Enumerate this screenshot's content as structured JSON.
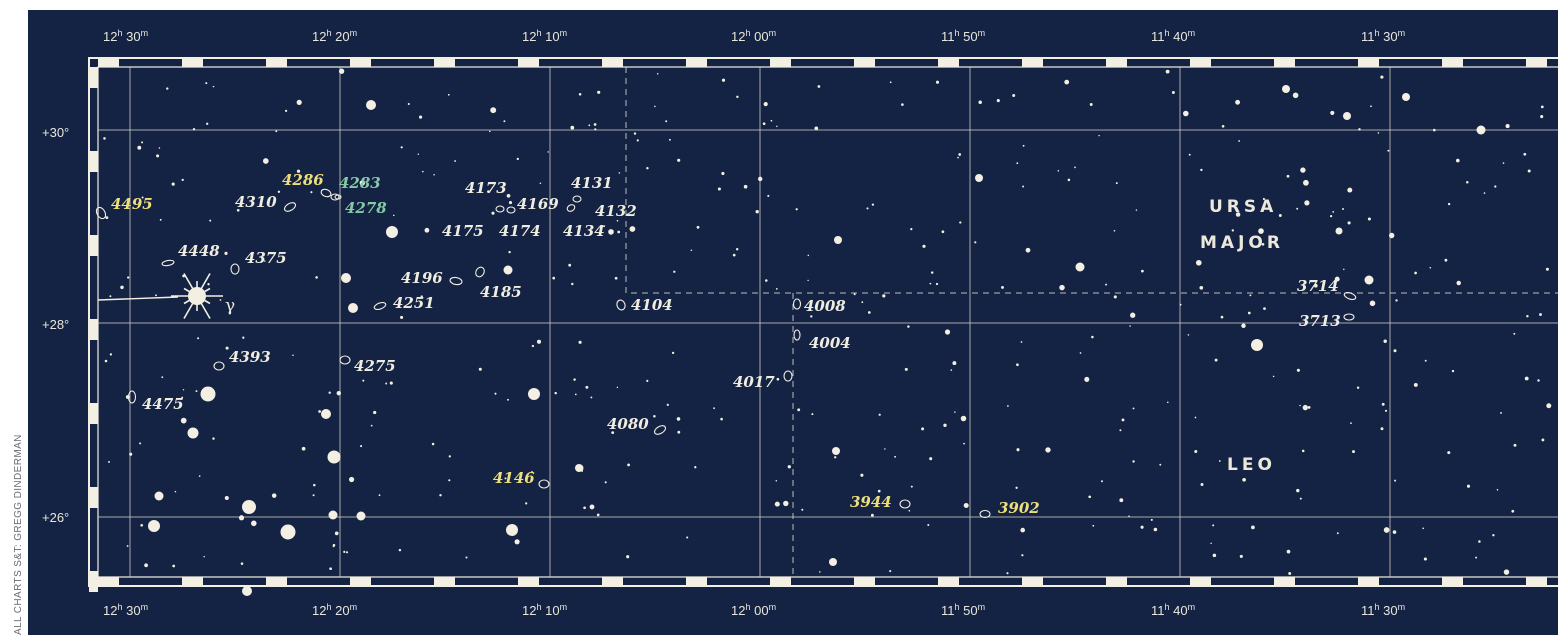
{
  "credit": "ALL CHARTS S&T: GREGG DINDERMAN",
  "colors": {
    "background": "#142343",
    "grid": "#d8d6cc",
    "star": "#f3efe2",
    "galaxy_label": "#efece0",
    "highlight_yellow": "#eedf7c",
    "highlight_green": "#86c9a4"
  },
  "ra_labels": [
    {
      "h": "12",
      "m": "30"
    },
    {
      "h": "12",
      "m": "20"
    },
    {
      "h": "12",
      "m": "10"
    },
    {
      "h": "12",
      "m": "00"
    },
    {
      "h": "11",
      "m": "50"
    },
    {
      "h": "11",
      "m": "40"
    },
    {
      "h": "11",
      "m": "30"
    }
  ],
  "dec_labels": [
    "+30°",
    "+28°",
    "+26°"
  ],
  "constellations": [
    "URSA",
    "MAJOR",
    "LEO"
  ],
  "star_label_gamma": "γ",
  "galaxies": [
    {
      "label": "4495",
      "color": "yellow"
    },
    {
      "label": "4310",
      "color": "white"
    },
    {
      "label": "4286",
      "color": "yellow"
    },
    {
      "label": "4283",
      "color": "green"
    },
    {
      "label": "4278",
      "color": "green"
    },
    {
      "label": "4173",
      "color": "white"
    },
    {
      "label": "4169",
      "color": "white"
    },
    {
      "label": "4131",
      "color": "white"
    },
    {
      "label": "4132",
      "color": "white"
    },
    {
      "label": "4175",
      "color": "white"
    },
    {
      "label": "4174",
      "color": "white"
    },
    {
      "label": "4134",
      "color": "white"
    },
    {
      "label": "4448",
      "color": "white"
    },
    {
      "label": "4375",
      "color": "white"
    },
    {
      "label": "4196",
      "color": "white"
    },
    {
      "label": "4185",
      "color": "white"
    },
    {
      "label": "4251",
      "color": "white"
    },
    {
      "label": "4104",
      "color": "white"
    },
    {
      "label": "4008",
      "color": "white"
    },
    {
      "label": "4004",
      "color": "white"
    },
    {
      "label": "4393",
      "color": "white"
    },
    {
      "label": "4275",
      "color": "white"
    },
    {
      "label": "4017",
      "color": "white"
    },
    {
      "label": "4475",
      "color": "white"
    },
    {
      "label": "4080",
      "color": "white"
    },
    {
      "label": "4146",
      "color": "yellow"
    },
    {
      "label": "3944",
      "color": "yellow"
    },
    {
      "label": "3902",
      "color": "yellow"
    },
    {
      "label": "3714",
      "color": "white"
    },
    {
      "label": "3713",
      "color": "white"
    }
  ]
}
